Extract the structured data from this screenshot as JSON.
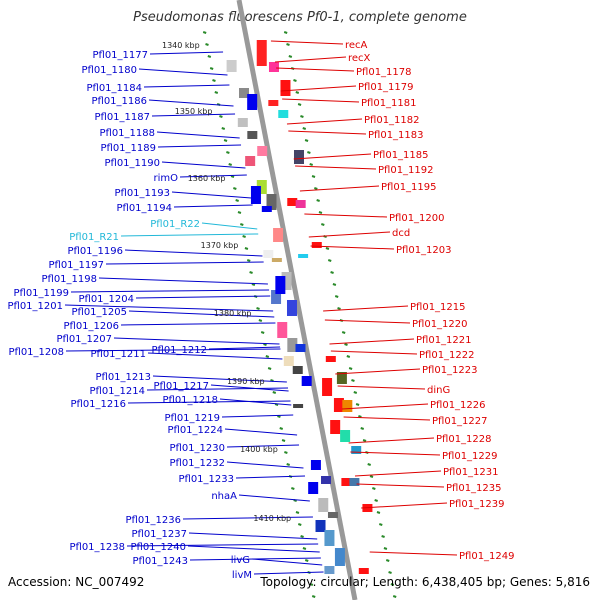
{
  "title": "Pseudomonas fluorescens Pf0-1, complete genome",
  "footer": {
    "accession": "Accession: NC_007492",
    "topology": "Topology: circular; Length: 6,438,405 bp; Genes: 5,816"
  },
  "colors": {
    "forward_label": "#0000cc",
    "reverse_label": "#dd0000",
    "rna_label": "#22b8d8",
    "backbone": "#888888",
    "tick": "#2a8a2a"
  },
  "kbp_marks": [
    {
      "label": "1340 kbp"
    },
    {
      "label": "1350 kbp"
    },
    {
      "label": "1360 kbp"
    },
    {
      "label": "1370 kbp"
    },
    {
      "label": "1380 kbp"
    },
    {
      "label": "1390 kbp"
    },
    {
      "label": "1400 kbp"
    },
    {
      "label": "1410 kbp"
    }
  ],
  "left_labels": [
    {
      "text": "Pfl01_1177"
    },
    {
      "text": "Pfl01_1180"
    },
    {
      "text": "Pfl01_1184"
    },
    {
      "text": "Pfl01_1186"
    },
    {
      "text": "Pfl01_1187"
    },
    {
      "text": "Pfl01_1188"
    },
    {
      "text": "Pfl01_1189"
    },
    {
      "text": "Pfl01_1190"
    },
    {
      "text": "rimO"
    },
    {
      "text": "Pfl01_1193"
    },
    {
      "text": "Pfl01_1194"
    },
    {
      "text": "Pfl01_R22",
      "rna": true
    },
    {
      "text": "Pfl01_R21",
      "rna": true
    },
    {
      "text": "Pfl01_1196"
    },
    {
      "text": "Pfl01_1197"
    },
    {
      "text": "Pfl01_1198"
    },
    {
      "text": "Pfl01_1199"
    },
    {
      "text": "Pfl01_1201"
    },
    {
      "text": "Pfl01_1204"
    },
    {
      "text": "Pfl01_1205"
    },
    {
      "text": "Pfl01_1206"
    },
    {
      "text": "Pfl01_1207"
    },
    {
      "text": "Pfl01_1208"
    },
    {
      "text": "Pfl01_1211"
    },
    {
      "text": "Pfl01_1212"
    },
    {
      "text": "Pfl01_1213"
    },
    {
      "text": "Pfl01_1214"
    },
    {
      "text": "Pfl01_1217"
    },
    {
      "text": "Pfl01_1216"
    },
    {
      "text": "Pfl01_1218"
    },
    {
      "text": "Pfl01_1219"
    },
    {
      "text": "Pfl01_1224"
    },
    {
      "text": "Pfl01_1230"
    },
    {
      "text": "Pfl01_1232"
    },
    {
      "text": "Pfl01_1233"
    },
    {
      "text": "nhaA"
    },
    {
      "text": "Pfl01_1236"
    },
    {
      "text": "Pfl01_1237"
    },
    {
      "text": "Pfl01_1238"
    },
    {
      "text": "Pfl01_1240"
    },
    {
      "text": "Pfl01_1243"
    },
    {
      "text": "livG"
    },
    {
      "text": "livM"
    }
  ],
  "right_labels": [
    {
      "text": "recA"
    },
    {
      "text": "recX"
    },
    {
      "text": "Pfl01_1178"
    },
    {
      "text": "Pfl01_1179"
    },
    {
      "text": "Pfl01_1181"
    },
    {
      "text": "Pfl01_1182"
    },
    {
      "text": "Pfl01_1183"
    },
    {
      "text": "Pfl01_1185"
    },
    {
      "text": "Pfl01_1192"
    },
    {
      "text": "Pfl01_1195"
    },
    {
      "text": "Pfl01_1200"
    },
    {
      "text": "dcd"
    },
    {
      "text": "Pfl01_1203"
    },
    {
      "text": "Pfl01_1215"
    },
    {
      "text": "Pfl01_1220"
    },
    {
      "text": "Pfl01_1221"
    },
    {
      "text": "Pfl01_1222"
    },
    {
      "text": "Pfl01_1223"
    },
    {
      "text": "dinG"
    },
    {
      "text": "Pfl01_1226"
    },
    {
      "text": "Pfl01_1227"
    },
    {
      "text": "Pfl01_1228"
    },
    {
      "text": "Pfl01_1229"
    },
    {
      "text": "Pfl01_1231"
    },
    {
      "text": "Pfl01_1235"
    },
    {
      "text": "Pfl01_1239"
    },
    {
      "text": "Pfl01_1249"
    }
  ]
}
